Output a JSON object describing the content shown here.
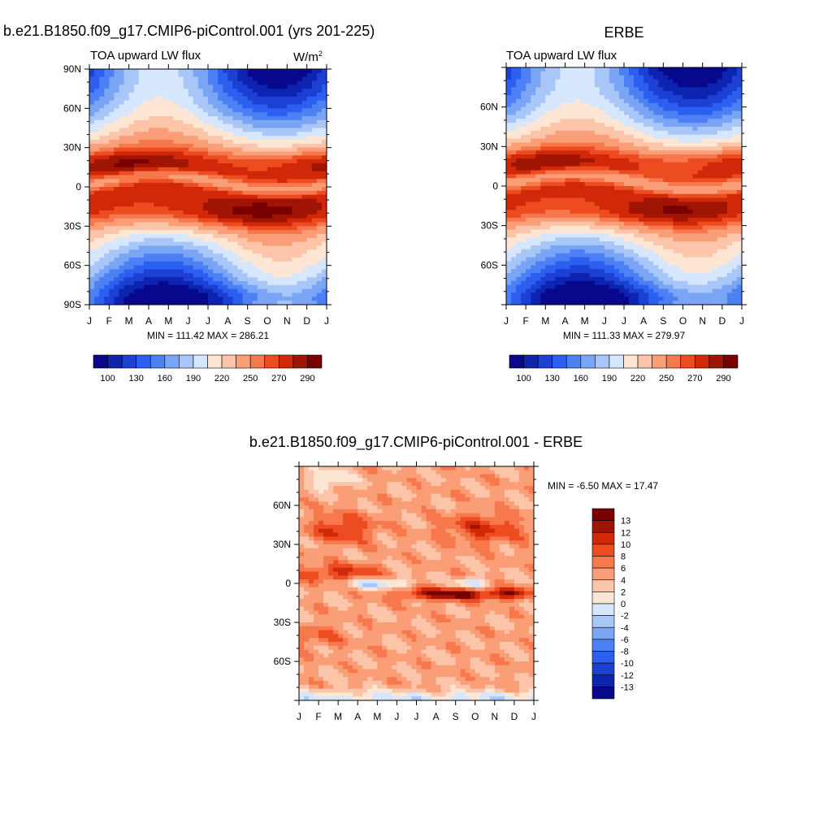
{
  "chart_data": [
    {
      "type": "heatmap",
      "id": "model",
      "case_title": "b.e21.B1850.f09_g17.CMIP6-piControl.001 (yrs 201-225)",
      "title": "TOA upward LW flux",
      "units": "W/m",
      "units_superscript": "2",
      "xlabel": "",
      "ylabel": "",
      "x_tick_labels": [
        "J",
        "F",
        "M",
        "A",
        "M",
        "J",
        "J",
        "A",
        "S",
        "O",
        "N",
        "D",
        "J"
      ],
      "y_tick_labels": [
        "90N",
        "60N",
        "30N",
        "0",
        "30S",
        "60S",
        "90S"
      ],
      "y_tick_values": [
        90,
        60,
        30,
        0,
        -30,
        -60,
        -90
      ],
      "ylim": [
        -90,
        90
      ],
      "min": 111.42,
      "max": 286.21,
      "stats_text": "MIN = 111.42 MAX = 286.21",
      "colorbar_labels": [
        "100",
        "130",
        "160",
        "190",
        "220",
        "250",
        "270",
        "290"
      ],
      "levels": [
        100,
        115,
        130,
        145,
        160,
        175,
        190,
        205,
        220,
        235,
        250,
        260,
        270,
        280,
        290
      ]
    },
    {
      "type": "heatmap",
      "id": "obs",
      "case_title": "ERBE",
      "title": "TOA upward LW flux",
      "xlabel": "",
      "ylabel": "",
      "x_tick_labels": [
        "J",
        "F",
        "M",
        "A",
        "M",
        "J",
        "J",
        "A",
        "S",
        "O",
        "N",
        "D",
        "J"
      ],
      "y_tick_labels": [
        "60N",
        "30N",
        "0",
        "30S",
        "60S"
      ],
      "y_tick_values": [
        60,
        30,
        0,
        -30,
        -60
      ],
      "ylim": [
        -90,
        90
      ],
      "min": 111.33,
      "max": 279.97,
      "stats_text": "MIN = 111.33 MAX = 279.97",
      "colorbar_labels": [
        "100",
        "130",
        "160",
        "190",
        "220",
        "250",
        "270",
        "290"
      ],
      "levels": [
        100,
        115,
        130,
        145,
        160,
        175,
        190,
        205,
        220,
        235,
        250,
        260,
        270,
        280,
        290
      ]
    },
    {
      "type": "heatmap",
      "id": "diff",
      "case_title": "b.e21.B1850.f09_g17.CMIP6-piControl.001 - ERBE",
      "xlabel": "",
      "ylabel": "",
      "x_tick_labels": [
        "J",
        "F",
        "M",
        "A",
        "M",
        "J",
        "J",
        "A",
        "S",
        "O",
        "N",
        "D",
        "J"
      ],
      "y_tick_labels": [
        "60N",
        "30N",
        "0",
        "30S",
        "60S"
      ],
      "y_tick_values": [
        60,
        30,
        0,
        -30,
        -60
      ],
      "ylim": [
        -90,
        90
      ],
      "min": -6.5,
      "max": 17.47,
      "stats_text": "MIN =  -6.50 MAX =  17.47",
      "colorbar_labels": [
        "13",
        "12",
        "10",
        "8",
        "6",
        "4",
        "2",
        "0",
        "-2",
        "-4",
        "-6",
        "-8",
        "-10",
        "-12",
        "-13"
      ],
      "levels": [
        -13,
        -12,
        -10,
        -8,
        -6,
        -4,
        -2,
        0,
        2,
        4,
        6,
        8,
        10,
        12,
        13
      ]
    }
  ],
  "colors": {
    "colormap": [
      "#08088c",
      "#0c24b0",
      "#1c40d4",
      "#2c5ef0",
      "#4c80f4",
      "#7aa4f4",
      "#a8c6f8",
      "#d6e6fc",
      "#fde6d4",
      "#fcc4a8",
      "#fa9e78",
      "#f6784c",
      "#ec4c20",
      "#d02808",
      "#a01404",
      "#780000"
    ]
  }
}
